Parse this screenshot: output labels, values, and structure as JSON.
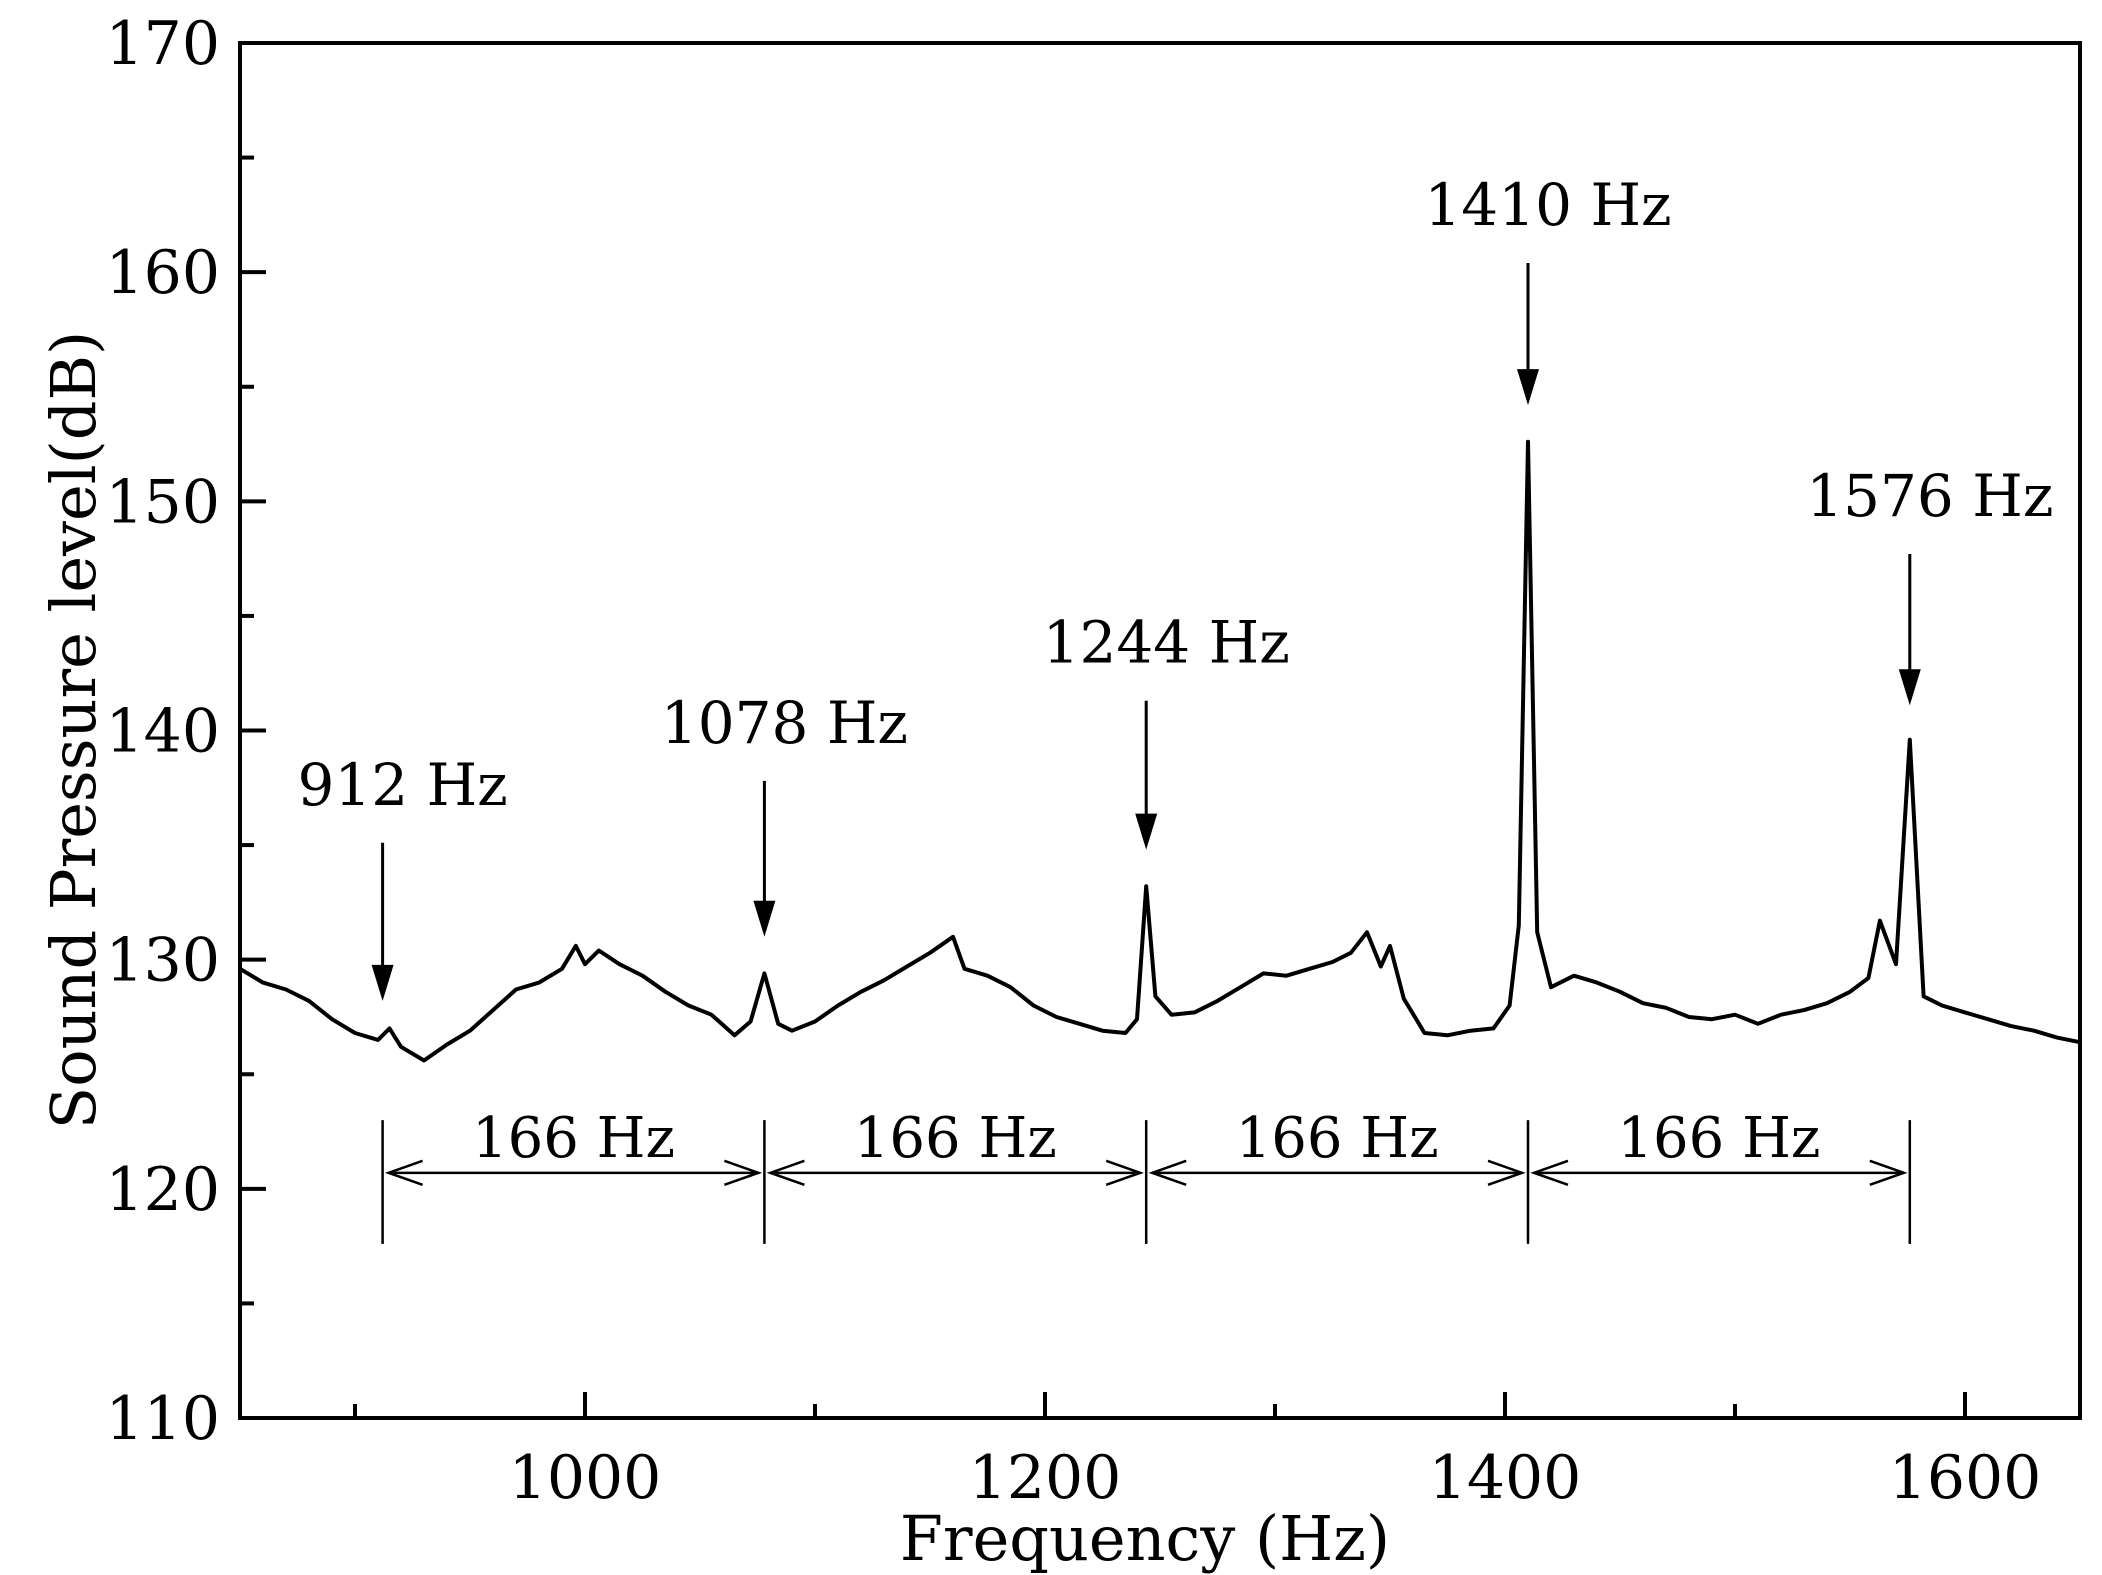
{
  "chart_data": {
    "type": "line",
    "title": "",
    "xlabel": "Frequency (Hz)",
    "ylabel": "Sound Pressure level(dB)",
    "xlim": [
      850,
      1650
    ],
    "ylim": [
      110,
      170
    ],
    "xticks": [
      1000,
      1200,
      1400,
      1600
    ],
    "xticks_minor": [
      900,
      1100,
      1300,
      1500
    ],
    "yticks": [
      110,
      120,
      130,
      140,
      150,
      160,
      170
    ],
    "yticks_minor": [
      115,
      125,
      135,
      145,
      155,
      165
    ],
    "grid": false,
    "line_color": "#000000",
    "series": [
      {
        "points": [
          [
            850,
            129.6
          ],
          [
            860,
            129.0
          ],
          [
            870,
            128.7
          ],
          [
            880,
            128.2
          ],
          [
            890,
            127.4
          ],
          [
            900,
            126.8
          ],
          [
            910,
            126.5
          ],
          [
            915,
            127.0
          ],
          [
            920,
            126.2
          ],
          [
            930,
            125.6
          ],
          [
            940,
            126.3
          ],
          [
            950,
            126.9
          ],
          [
            960,
            127.8
          ],
          [
            970,
            128.7
          ],
          [
            980,
            129.0
          ],
          [
            990,
            129.6
          ],
          [
            996,
            130.6
          ],
          [
            1000,
            129.8
          ],
          [
            1006,
            130.4
          ],
          [
            1015,
            129.8
          ],
          [
            1025,
            129.3
          ],
          [
            1035,
            128.6
          ],
          [
            1045,
            128.0
          ],
          [
            1055,
            127.6
          ],
          [
            1065,
            126.7
          ],
          [
            1072,
            127.3
          ],
          [
            1078,
            129.4
          ],
          [
            1084,
            127.2
          ],
          [
            1090,
            126.9
          ],
          [
            1100,
            127.3
          ],
          [
            1110,
            128.0
          ],
          [
            1120,
            128.6
          ],
          [
            1130,
            129.1
          ],
          [
            1140,
            129.7
          ],
          [
            1150,
            130.3
          ],
          [
            1160,
            131.0
          ],
          [
            1165,
            129.6
          ],
          [
            1175,
            129.3
          ],
          [
            1185,
            128.8
          ],
          [
            1195,
            128.0
          ],
          [
            1205,
            127.5
          ],
          [
            1215,
            127.2
          ],
          [
            1225,
            126.9
          ],
          [
            1235,
            126.8
          ],
          [
            1240,
            127.4
          ],
          [
            1244,
            133.2
          ],
          [
            1248,
            128.4
          ],
          [
            1255,
            127.6
          ],
          [
            1265,
            127.7
          ],
          [
            1275,
            128.2
          ],
          [
            1285,
            128.8
          ],
          [
            1295,
            129.4
          ],
          [
            1305,
            129.3
          ],
          [
            1315,
            129.6
          ],
          [
            1325,
            129.9
          ],
          [
            1333,
            130.3
          ],
          [
            1340,
            131.2
          ],
          [
            1346,
            129.7
          ],
          [
            1350,
            130.6
          ],
          [
            1356,
            128.3
          ],
          [
            1365,
            126.8
          ],
          [
            1375,
            126.7
          ],
          [
            1385,
            126.9
          ],
          [
            1395,
            127.0
          ],
          [
            1402,
            128.0
          ],
          [
            1406,
            131.5
          ],
          [
            1410,
            152.6
          ],
          [
            1414,
            131.2
          ],
          [
            1420,
            128.8
          ],
          [
            1430,
            129.3
          ],
          [
            1440,
            129.0
          ],
          [
            1450,
            128.6
          ],
          [
            1460,
            128.1
          ],
          [
            1470,
            127.9
          ],
          [
            1480,
            127.5
          ],
          [
            1490,
            127.4
          ],
          [
            1500,
            127.6
          ],
          [
            1510,
            127.2
          ],
          [
            1520,
            127.6
          ],
          [
            1530,
            127.8
          ],
          [
            1540,
            128.1
          ],
          [
            1550,
            128.6
          ],
          [
            1558,
            129.2
          ],
          [
            1563,
            131.7
          ],
          [
            1570,
            129.8
          ],
          [
            1576,
            139.6
          ],
          [
            1582,
            128.4
          ],
          [
            1590,
            128.0
          ],
          [
            1600,
            127.7
          ],
          [
            1610,
            127.4
          ],
          [
            1620,
            127.1
          ],
          [
            1630,
            126.9
          ],
          [
            1640,
            126.6
          ],
          [
            1650,
            126.4
          ]
        ]
      }
    ],
    "annotations": [
      {
        "label": "912 Hz",
        "x": 912,
        "arrow_from_y": 135.1,
        "arrow_to_y": 128.2
      },
      {
        "label": "1078 Hz",
        "x": 1078,
        "arrow_from_y": 137.8,
        "arrow_to_y": 131.0
      },
      {
        "label": "1244 Hz",
        "x": 1244,
        "arrow_from_y": 141.3,
        "arrow_to_y": 134.8
      },
      {
        "label": "1410 Hz",
        "x": 1410,
        "arrow_from_y": 160.4,
        "arrow_to_y": 154.2
      },
      {
        "label": "1576 Hz",
        "x": 1576,
        "arrow_from_y": 147.7,
        "arrow_to_y": 141.1
      }
    ],
    "spacing_markers": [
      {
        "label": "166 Hz",
        "x1": 912,
        "x2": 1078
      },
      {
        "label": "166 Hz",
        "x1": 1078,
        "x2": 1244
      },
      {
        "label": "166 Hz",
        "x1": 1244,
        "x2": 1410
      },
      {
        "label": "166 Hz",
        "x1": 1410,
        "x2": 1576
      }
    ],
    "spacing_arrow_y": 120.0,
    "spacing_bar_y": [
      117.6,
      123.0
    ]
  }
}
